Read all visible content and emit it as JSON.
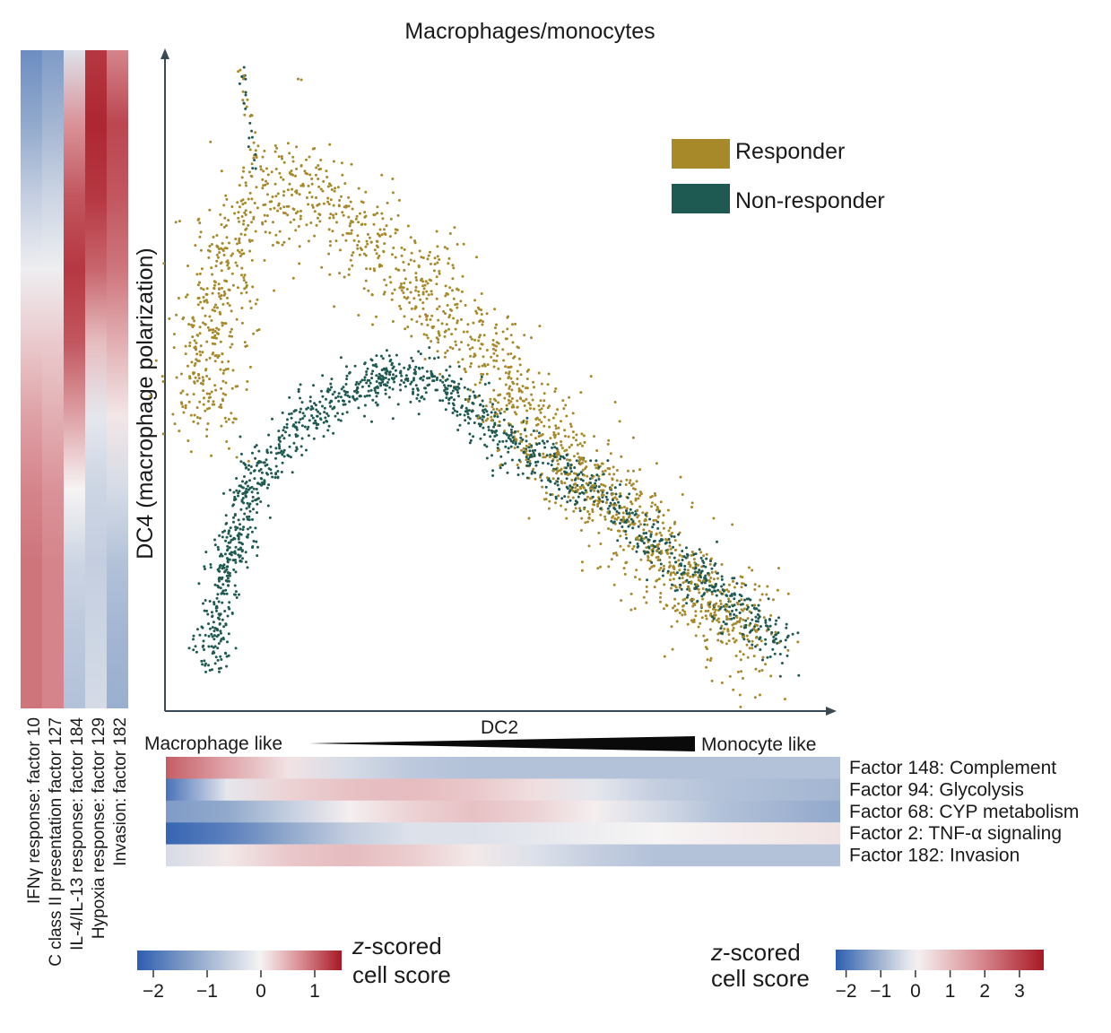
{
  "chart_data": {
    "type": "scatter",
    "title": "Macrophages/monocytes",
    "xlabel": "DC2",
    "ylabel": "DC4 (macrophage polarization)",
    "x_range_note": "arbitrary diffusion component units",
    "xlim": [
      0,
      100
    ],
    "ylim": [
      0,
      100
    ],
    "legend": {
      "position": "top-right",
      "entries": [
        {
          "name": "Responder",
          "color": "#a8892a"
        },
        {
          "name": "Non-responder",
          "color": "#1f5a52"
        }
      ]
    },
    "series": [
      {
        "name": "Responder",
        "color": "#a8892a",
        "trajectory": [
          [
            5,
            45
          ],
          [
            6,
            58
          ],
          [
            9,
            72
          ],
          [
            14,
            78
          ],
          [
            20,
            80
          ],
          [
            26,
            76
          ],
          [
            33,
            68
          ],
          [
            40,
            62
          ],
          [
            46,
            56
          ],
          [
            52,
            45
          ],
          [
            60,
            37
          ],
          [
            68,
            30
          ],
          [
            75,
            22
          ],
          [
            82,
            15
          ],
          [
            88,
            10
          ]
        ]
      },
      {
        "name": "Non-responder",
        "color": "#1f5a52",
        "trajectory": [
          [
            6,
            7
          ],
          [
            8,
            20
          ],
          [
            12,
            34
          ],
          [
            18,
            42
          ],
          [
            24,
            47
          ],
          [
            32,
            51
          ],
          [
            40,
            50
          ],
          [
            48,
            43
          ],
          [
            56,
            37
          ],
          [
            64,
            33
          ],
          [
            72,
            25
          ],
          [
            80,
            20
          ],
          [
            86,
            14
          ],
          [
            92,
            10
          ]
        ]
      }
    ],
    "axis_annotation": {
      "left_label": "Macrophage like",
      "right_label": "Monocyte like"
    },
    "left_heatmap": {
      "tracks": [
        {
          "label": "IFNγ response: factor 10",
          "values": [
            -1.6,
            -1.2,
            -0.6,
            -0.1,
            0.3,
            0.6,
            0.8,
            0.9,
            0.9,
            0.9
          ]
        },
        {
          "label": "C class II presentation factor 127",
          "values": [
            -1.4,
            -1.0,
            -0.5,
            -0.1,
            0.3,
            0.5,
            0.7,
            0.8,
            0.8,
            0.8
          ]
        },
        {
          "label": "IL-4/IL-13 response: factor 184",
          "values": [
            -0.3,
            0.7,
            1.1,
            1.3,
            1.1,
            0.6,
            0.0,
            -0.5,
            -0.7,
            -0.8
          ]
        },
        {
          "label": "Hypoxia response: factor 129",
          "values": [
            1.3,
            1.4,
            1.3,
            1.0,
            0.4,
            -0.2,
            -0.5,
            -0.6,
            -0.5,
            -0.4
          ]
        },
        {
          "label": "Invasion: factor 182",
          "values": [
            0.8,
            1.2,
            1.1,
            0.9,
            0.5,
            0.1,
            -0.4,
            -0.8,
            -1.0,
            -1.1
          ]
        }
      ]
    },
    "bottom_heatmap": {
      "tracks": [
        {
          "label": "Factor 148: Complement",
          "values": [
            2.6,
            1.4,
            0.3,
            -0.4,
            -0.7,
            -0.8,
            -0.8,
            -0.8,
            -0.8,
            -0.8,
            -0.8,
            -0.8
          ]
        },
        {
          "label": "Factor 94: Glycolysis",
          "values": [
            -2.0,
            -0.2,
            0.6,
            0.9,
            1.0,
            0.8,
            0.4,
            -0.2,
            -0.6,
            -0.8,
            -0.9,
            -1.0
          ]
        },
        {
          "label": "Factor 68: CYP metabolism",
          "values": [
            -1.4,
            -1.2,
            -0.6,
            0.1,
            0.6,
            0.9,
            0.6,
            0.1,
            -0.4,
            -0.8,
            -1.0,
            -1.2
          ]
        },
        {
          "label": "Factor 2: TNF-α signaling",
          "values": [
            -2.2,
            -1.8,
            -1.2,
            -0.6,
            -0.3,
            -0.3,
            -0.2,
            -0.1,
            0.0,
            0.1,
            0.2,
            0.3
          ]
        },
        {
          "label": "Factor 182: Invasion",
          "values": [
            -0.4,
            0.2,
            0.8,
            1.0,
            0.7,
            0.2,
            -0.3,
            -0.6,
            -0.8,
            -0.8,
            -0.8,
            -0.8
          ]
        }
      ]
    },
    "colorbars": [
      {
        "label_italic": "z",
        "label": "-scored",
        "label2": "cell score",
        "ticks": [
          "−2",
          "−1",
          "0",
          "1"
        ],
        "range": [
          -2.3,
          1.5
        ]
      },
      {
        "label_italic": "z",
        "label": "-scored",
        "label2": "cell score",
        "ticks": [
          "−2",
          "−1",
          "0",
          "1",
          "2",
          "3"
        ],
        "range": [
          -2.3,
          3.7
        ]
      }
    ]
  }
}
